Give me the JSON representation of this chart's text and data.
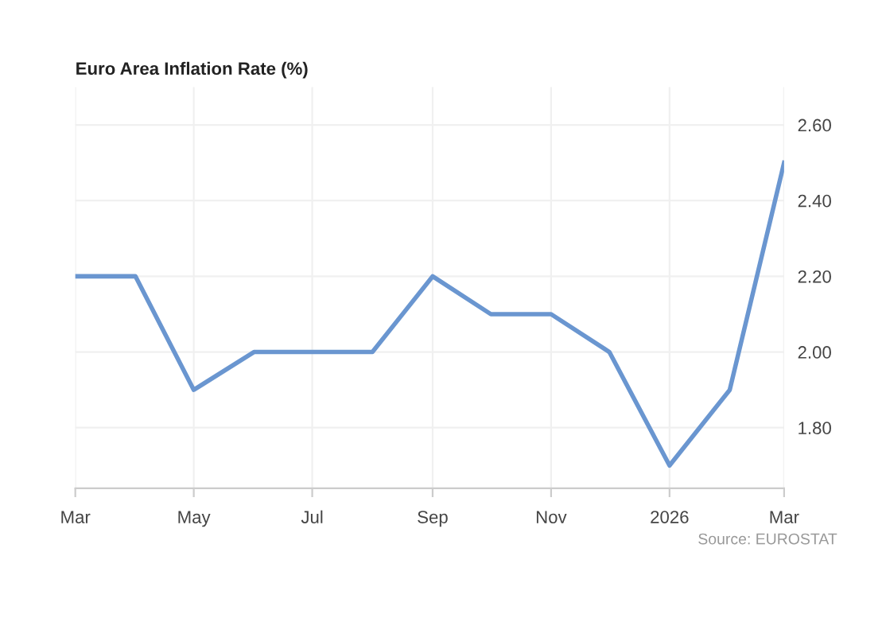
{
  "chart_data": {
    "type": "line",
    "title": "Euro Area Inflation Rate (%)",
    "x": [
      "2025-03",
      "2025-04",
      "2025-05",
      "2025-06",
      "2025-07",
      "2025-08",
      "2025-09",
      "2025-10",
      "2025-11",
      "2025-12",
      "2026-01",
      "2026-02",
      "2026-03"
    ],
    "series": [
      {
        "color": "#6a96d0",
        "values": [
          2.2,
          2.2,
          1.9,
          2.0,
          2.0,
          2.0,
          2.2,
          2.1,
          2.1,
          2.0,
          1.7,
          1.9,
          2.5
        ]
      }
    ],
    "xlim": [
      "2025-03",
      "2026-03"
    ],
    "xticks": [
      {
        "value": "2025-03",
        "label": "Mar"
      },
      {
        "value": "2025-05",
        "label": "May"
      },
      {
        "value": "2025-07",
        "label": "Jul"
      },
      {
        "value": "2025-09",
        "label": "Sep"
      },
      {
        "value": "2025-11",
        "label": "Nov"
      },
      {
        "value": "2026-01",
        "label": "2026"
      },
      {
        "value": "2026-03",
        "label": "Mar"
      }
    ],
    "ylim": [
      1.64,
      2.7
    ],
    "yticks": [
      {
        "value": 1.8,
        "label": "1.80"
      },
      {
        "value": 2.0,
        "label": "2.00"
      },
      {
        "value": 2.2,
        "label": "2.20"
      },
      {
        "value": 2.4,
        "label": "2.40"
      },
      {
        "value": 2.6,
        "label": "2.60"
      }
    ],
    "grid": true,
    "marker": "none",
    "line_style": "solid",
    "annotations": [
      "Source: EUROSTAT"
    ]
  }
}
